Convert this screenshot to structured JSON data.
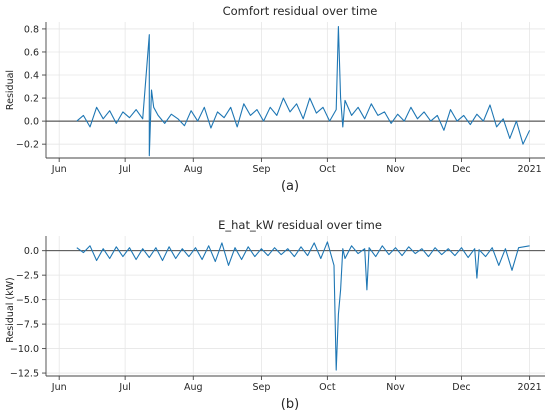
{
  "chart_data": [
    {
      "type": "line",
      "title": "Comfort residual over time",
      "panel_label": "(a)",
      "xlabel": "",
      "ylabel": "Residual",
      "xlim": [
        "2020-05-26",
        "2021-01-08"
      ],
      "ylim": [
        -0.32,
        0.86
      ],
      "xticks": [
        {
          "date": "2020-06-01",
          "label": "Jun"
        },
        {
          "date": "2020-07-01",
          "label": "Jul"
        },
        {
          "date": "2020-08-01",
          "label": "Aug"
        },
        {
          "date": "2020-09-01",
          "label": "Sep"
        },
        {
          "date": "2020-10-01",
          "label": "Oct"
        },
        {
          "date": "2020-11-01",
          "label": "Nov"
        },
        {
          "date": "2020-12-01",
          "label": "Dec"
        },
        {
          "date": "2021-01-01",
          "label": "2021"
        }
      ],
      "yticks": [
        {
          "value": -0.2,
          "label": "−0.2"
        },
        {
          "value": 0.0,
          "label": "0.0"
        },
        {
          "value": 0.2,
          "label": "0.2"
        },
        {
          "value": 0.4,
          "label": "0.4"
        },
        {
          "value": 0.6,
          "label": "0.6"
        },
        {
          "value": 0.8,
          "label": "0.8"
        }
      ],
      "grid": true,
      "reference_line": 0,
      "line_color": "#1f77b4",
      "series": [
        {
          "x": [
            "2020-06-09",
            "2020-06-12",
            "2020-06-15",
            "2020-06-18",
            "2020-06-21",
            "2020-06-24",
            "2020-06-27",
            "2020-06-30",
            "2020-07-03",
            "2020-07-06",
            "2020-07-09",
            "2020-07-12",
            "2020-07-12",
            "2020-07-13",
            "2020-07-14",
            "2020-07-16",
            "2020-07-19",
            "2020-07-22",
            "2020-07-25",
            "2020-07-28",
            "2020-07-31",
            "2020-08-03",
            "2020-08-06",
            "2020-08-09",
            "2020-08-12",
            "2020-08-15",
            "2020-08-18",
            "2020-08-21",
            "2020-08-24",
            "2020-08-27",
            "2020-08-30",
            "2020-09-02",
            "2020-09-05",
            "2020-09-08",
            "2020-09-11",
            "2020-09-14",
            "2020-09-17",
            "2020-09-20",
            "2020-09-23",
            "2020-09-26",
            "2020-09-29",
            "2020-10-02",
            "2020-10-05",
            "2020-10-06",
            "2020-10-07",
            "2020-10-08",
            "2020-10-09",
            "2020-10-12",
            "2020-10-15",
            "2020-10-18",
            "2020-10-21",
            "2020-10-24",
            "2020-10-27",
            "2020-10-30",
            "2020-11-02",
            "2020-11-05",
            "2020-11-08",
            "2020-11-11",
            "2020-11-14",
            "2020-11-17",
            "2020-11-20",
            "2020-11-23",
            "2020-11-26",
            "2020-11-29",
            "2020-12-02",
            "2020-12-05",
            "2020-12-08",
            "2020-12-11",
            "2020-12-14",
            "2020-12-17",
            "2020-12-20",
            "2020-12-23",
            "2020-12-26",
            "2020-12-29",
            "2021-01-01"
          ],
          "y": [
            0.0,
            0.05,
            -0.05,
            0.12,
            0.02,
            0.09,
            -0.02,
            0.08,
            0.03,
            0.1,
            0.02,
            0.75,
            -0.3,
            0.27,
            0.12,
            0.05,
            -0.02,
            0.06,
            0.02,
            -0.04,
            0.09,
            0.0,
            0.12,
            -0.06,
            0.08,
            0.03,
            0.12,
            -0.05,
            0.15,
            0.05,
            0.1,
            0.0,
            0.12,
            0.05,
            0.2,
            0.08,
            0.15,
            0.02,
            0.2,
            0.07,
            0.12,
            0.0,
            0.1,
            0.82,
            0.2,
            -0.05,
            0.18,
            0.05,
            0.12,
            0.02,
            0.15,
            0.05,
            0.08,
            -0.02,
            0.06,
            0.0,
            0.12,
            0.02,
            0.08,
            0.0,
            0.05,
            -0.08,
            0.1,
            0.0,
            0.05,
            -0.03,
            0.06,
            0.0,
            0.14,
            -0.05,
            0.02,
            -0.15,
            0.0,
            -0.2,
            -0.08
          ]
        }
      ]
    },
    {
      "type": "line",
      "title": "E_hat_kW residual over time",
      "panel_label": "(b)",
      "xlabel": "",
      "ylabel": "Residual (kW)",
      "xlim": [
        "2020-05-26",
        "2021-01-08"
      ],
      "ylim": [
        -12.8,
        1.5
      ],
      "xticks": [
        {
          "date": "2020-06-01",
          "label": "Jun"
        },
        {
          "date": "2020-07-01",
          "label": "Jul"
        },
        {
          "date": "2020-08-01",
          "label": "Aug"
        },
        {
          "date": "2020-09-01",
          "label": "Sep"
        },
        {
          "date": "2020-10-01",
          "label": "Oct"
        },
        {
          "date": "2020-11-01",
          "label": "Nov"
        },
        {
          "date": "2020-12-01",
          "label": "Dec"
        },
        {
          "date": "2021-01-01",
          "label": "2021"
        }
      ],
      "yticks": [
        {
          "value": -12.5,
          "label": "−12.5"
        },
        {
          "value": -10.0,
          "label": "−10.0"
        },
        {
          "value": -7.5,
          "label": "−7.5"
        },
        {
          "value": -5.0,
          "label": "−5.0"
        },
        {
          "value": -2.5,
          "label": "−2.5"
        },
        {
          "value": 0.0,
          "label": "0.0"
        }
      ],
      "grid": true,
      "reference_line": 0,
      "line_color": "#1f77b4",
      "series": [
        {
          "x": [
            "2020-06-09",
            "2020-06-12",
            "2020-06-15",
            "2020-06-18",
            "2020-06-21",
            "2020-06-24",
            "2020-06-27",
            "2020-06-30",
            "2020-07-03",
            "2020-07-06",
            "2020-07-09",
            "2020-07-12",
            "2020-07-15",
            "2020-07-18",
            "2020-07-21",
            "2020-07-24",
            "2020-07-27",
            "2020-07-30",
            "2020-08-02",
            "2020-08-05",
            "2020-08-08",
            "2020-08-11",
            "2020-08-14",
            "2020-08-17",
            "2020-08-20",
            "2020-08-23",
            "2020-08-26",
            "2020-08-29",
            "2020-09-01",
            "2020-09-04",
            "2020-09-07",
            "2020-09-10",
            "2020-09-13",
            "2020-09-16",
            "2020-09-19",
            "2020-09-22",
            "2020-09-25",
            "2020-09-28",
            "2020-10-01",
            "2020-10-04",
            "2020-10-05",
            "2020-10-06",
            "2020-10-07",
            "2020-10-08",
            "2020-10-09",
            "2020-10-12",
            "2020-10-15",
            "2020-10-18",
            "2020-10-19",
            "2020-10-20",
            "2020-10-23",
            "2020-10-26",
            "2020-10-29",
            "2020-11-01",
            "2020-11-04",
            "2020-11-07",
            "2020-11-10",
            "2020-11-13",
            "2020-11-16",
            "2020-11-19",
            "2020-11-22",
            "2020-11-25",
            "2020-11-28",
            "2020-12-01",
            "2020-12-04",
            "2020-12-07",
            "2020-12-08",
            "2020-12-09",
            "2020-12-12",
            "2020-12-15",
            "2020-12-18",
            "2020-12-21",
            "2020-12-24",
            "2020-12-27",
            "2021-01-01"
          ],
          "y": [
            0.3,
            -0.2,
            0.5,
            -1.0,
            0.2,
            -0.8,
            0.4,
            -0.6,
            0.3,
            -0.9,
            0.2,
            -0.7,
            0.3,
            -1.0,
            0.4,
            -0.8,
            0.2,
            -0.6,
            0.3,
            -0.9,
            0.5,
            -1.1,
            0.8,
            -1.5,
            0.3,
            -0.9,
            0.4,
            -0.6,
            0.2,
            -0.5,
            0.3,
            -0.4,
            0.2,
            -0.6,
            0.4,
            -0.5,
            0.8,
            -0.8,
            0.9,
            -1.5,
            -12.2,
            -6.5,
            -4.0,
            0.2,
            -0.8,
            0.5,
            -0.3,
            0.2,
            -4.0,
            0.3,
            -0.6,
            0.5,
            -0.4,
            0.3,
            -0.5,
            0.4,
            -0.3,
            0.2,
            -0.6,
            0.3,
            -0.4,
            0.2,
            -0.5,
            0.3,
            -0.7,
            0.2,
            -2.8,
            0.1,
            -0.6,
            0.3,
            -1.5,
            0.2,
            -2.0,
            0.3,
            0.5
          ]
        }
      ]
    }
  ]
}
